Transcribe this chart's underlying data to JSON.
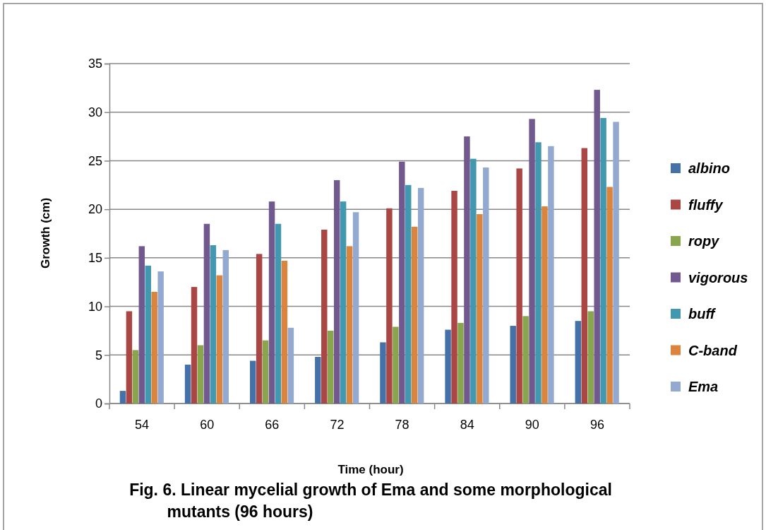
{
  "chart_data": {
    "type": "bar",
    "title": "Fig. 6. Linear mycelial growth of Ema and some morphological mutants (96 hours)",
    "xlabel": "Time (hour)",
    "ylabel": "Growth (cm)",
    "categories": [
      "54",
      "60",
      "66",
      "72",
      "78",
      "84",
      "90",
      "96"
    ],
    "series": [
      {
        "name": "albino",
        "color": "#4472a8",
        "values": [
          1.3,
          4.0,
          4.4,
          4.8,
          6.3,
          7.6,
          8.0,
          8.5
        ]
      },
      {
        "name": "fluffy",
        "color": "#aa4644",
        "values": [
          9.5,
          12.0,
          15.4,
          17.9,
          20.1,
          21.9,
          24.2,
          26.3
        ]
      },
      {
        "name": "ropy",
        "color": "#89a54e",
        "values": [
          5.5,
          6.0,
          6.5,
          7.5,
          7.9,
          8.3,
          9.0,
          9.5
        ]
      },
      {
        "name": "vigorous",
        "color": "#71588f",
        "values": [
          16.2,
          18.5,
          20.8,
          23.0,
          24.9,
          27.5,
          29.3,
          32.3
        ]
      },
      {
        "name": "buff",
        "color": "#4198af",
        "values": [
          14.2,
          16.3,
          18.5,
          20.8,
          22.5,
          25.2,
          26.9,
          29.4
        ]
      },
      {
        "name": "C-band",
        "color": "#db843d",
        "values": [
          11.5,
          13.2,
          14.7,
          16.2,
          18.2,
          19.5,
          20.3,
          22.3
        ]
      },
      {
        "name": "Ema",
        "color": "#93a9cf",
        "values": [
          13.6,
          15.8,
          7.8,
          19.7,
          22.2,
          24.3,
          26.5,
          29.0
        ]
      }
    ],
    "ylim": [
      0,
      35
    ],
    "yticks": [
      0,
      5,
      10,
      15,
      20,
      25,
      30,
      35
    ],
    "grid": "y",
    "legend": "right"
  }
}
